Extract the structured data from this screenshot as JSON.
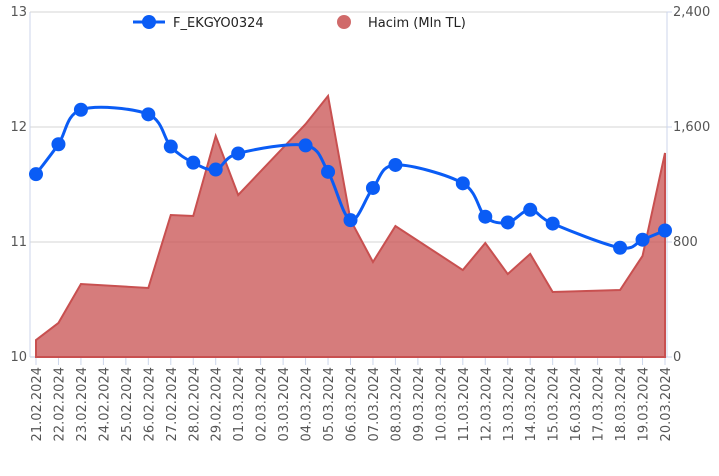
{
  "chart_data": {
    "type": "line-area",
    "x": [
      "21.02.2024",
      "22.02.2024",
      "23.02.2024",
      "26.02.2024",
      "27.02.2024",
      "28.02.2024",
      "29.02.2024",
      "01.03.2024",
      "04.03.2024",
      "05.03.2024",
      "06.03.2024",
      "07.03.2024",
      "08.03.2024",
      "11.03.2024",
      "12.03.2024",
      "13.03.2024",
      "14.03.2024",
      "15.03.2024",
      "18.03.2024",
      "19.03.2024",
      "20.03.2024"
    ],
    "xlim": [
      "21.02.2024",
      "20.03.2024"
    ],
    "xticks": [
      "21.02.2024",
      "22.02.2024",
      "23.02.2024",
      "24.02.2024",
      "25.02.2024",
      "26.02.2024",
      "27.02.2024",
      "28.02.2024",
      "29.02.2024",
      "01.03.2024",
      "02.03.2024",
      "03.03.2024",
      "04.03.2024",
      "05.03.2024",
      "06.03.2024",
      "07.03.2024",
      "08.03.2024",
      "09.03.2024",
      "10.03.2024",
      "11.03.2024",
      "12.03.2024",
      "13.03.2024",
      "14.03.2024",
      "15.03.2024",
      "16.03.2024",
      "17.03.2024",
      "18.03.2024",
      "19.03.2024",
      "20.03.2024"
    ],
    "series": [
      {
        "name": "F_EKGYO0324",
        "type": "line",
        "color": "#0a5cf5",
        "values": [
          11.59,
          11.85,
          12.15,
          12.11,
          11.83,
          11.69,
          11.63,
          11.77,
          11.84,
          11.61,
          11.19,
          11.47,
          11.67,
          11.51,
          11.22,
          11.17,
          11.28,
          11.16,
          10.95,
          11.02,
          11.1
        ]
      },
      {
        "name": "Hacim (Mln TL)",
        "type": "area",
        "axis": "y2",
        "color": "#c85050",
        "values": [
          118,
          237,
          508,
          480,
          988,
          981,
          1538,
          1127,
          1620,
          1816,
          953,
          661,
          911,
          605,
          793,
          577,
          717,
          452,
          466,
          703,
          1419
        ]
      }
    ],
    "ylim": [
      10,
      13
    ],
    "yticks": [
      10,
      11,
      12,
      13
    ],
    "y2lim": [
      0,
      2400
    ],
    "y2ticks": [
      0,
      {
        "value": 800,
        "label": "800"
      },
      {
        "value": 1600,
        "label": "1,600"
      },
      {
        "value": 2400,
        "label": "2,400"
      }
    ],
    "grid": true
  }
}
